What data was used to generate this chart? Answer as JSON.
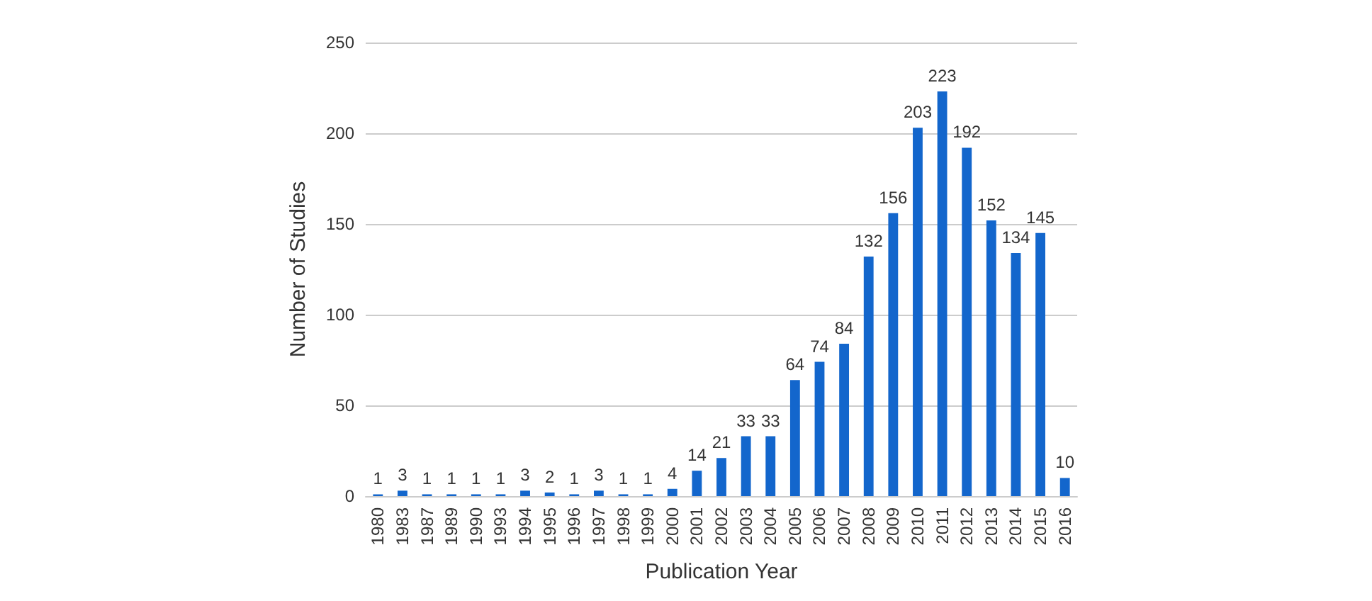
{
  "chart_data": {
    "type": "bar",
    "xlabel": "Publication Year",
    "ylabel": "Number of Studies",
    "categories": [
      "1980",
      "1983",
      "1987",
      "1989",
      "1990",
      "1993",
      "1994",
      "1995",
      "1996",
      "1997",
      "1998",
      "1999",
      "2000",
      "2001",
      "2002",
      "2003",
      "2004",
      "2005",
      "2006",
      "2007",
      "2008",
      "2009",
      "2010",
      "2011",
      "2012",
      "2013",
      "2014",
      "2015",
      "2016"
    ],
    "values": [
      1,
      3,
      1,
      1,
      1,
      1,
      3,
      2,
      1,
      3,
      1,
      1,
      4,
      14,
      21,
      33,
      33,
      64,
      74,
      84,
      132,
      156,
      203,
      223,
      192,
      152,
      134,
      145,
      10
    ],
    "color": "#1366cc",
    "ylim": [
      0,
      250
    ],
    "yticks": [
      0,
      50,
      100,
      150,
      200,
      250
    ],
    "grid": "y",
    "data_labels": true
  }
}
